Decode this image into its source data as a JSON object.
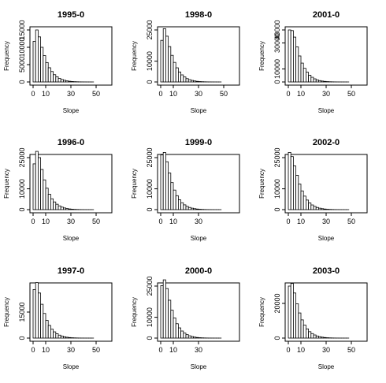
{
  "chart_data": [
    {
      "type": "bar",
      "title": "1995-0",
      "xlabel": "Slope",
      "ylabel": "Frequency",
      "xlim": [
        0,
        60
      ],
      "ylim": [
        0,
        15000
      ],
      "xticks": [
        "0",
        "10",
        "30",
        "50"
      ],
      "yticks": [
        "0",
        "5000",
        "10000",
        "15000"
      ],
      "bin_width": 2,
      "values": [
        11700,
        15000,
        13000,
        10000,
        7600,
        5600,
        4100,
        3000,
        2100,
        1500,
        1000,
        700,
        480,
        300,
        200,
        130,
        80,
        50,
        30,
        18,
        10,
        6,
        4,
        2
      ]
    },
    {
      "type": "bar",
      "title": "1998-0",
      "xlabel": "Slope",
      "ylabel": "Frequency",
      "xlim": [
        0,
        60
      ],
      "ylim": [
        0,
        25000
      ],
      "xticks": [
        "0",
        "10",
        "30",
        "50"
      ],
      "yticks": [
        "0",
        "10000",
        "25000"
      ],
      "bin_width": 2,
      "values": [
        20000,
        25600,
        22000,
        17000,
        12800,
        9400,
        6800,
        4800,
        3400,
        2400,
        1600,
        1100,
        740,
        480,
        300,
        190,
        120,
        70,
        40,
        24,
        14,
        8,
        4,
        2
      ]
    },
    {
      "type": "bar",
      "title": "2001-0",
      "xlabel": "Slope",
      "ylabel": "Frequency",
      "xlim": [
        0,
        60
      ],
      "ylim": [
        0,
        40000
      ],
      "xticks": [
        "0",
        "10",
        "30",
        "50"
      ],
      "yticks": [
        "0",
        "10000",
        "30000",
        "40000"
      ],
      "bin_width": 2,
      "values": [
        40000,
        39500,
        34500,
        27000,
        20000,
        14500,
        10500,
        7500,
        5200,
        3600,
        2400,
        1600,
        1050,
        680,
        430,
        270,
        160,
        95,
        55,
        32,
        18,
        10,
        5,
        3
      ]
    },
    {
      "type": "bar",
      "title": "1996-0",
      "xlabel": "Slope",
      "ylabel": "Frequency",
      "xlim": [
        0,
        60
      ],
      "ylim": [
        0,
        25000
      ],
      "xticks": [
        "0",
        "10",
        "30",
        "50"
      ],
      "yticks": [
        "0",
        "10000",
        "25000"
      ],
      "bin_width": 2,
      "values": [
        22000,
        28200,
        25000,
        19300,
        14300,
        10300,
        7400,
        5200,
        3700,
        2600,
        1800,
        1200,
        800,
        520,
        330,
        210,
        130,
        80,
        45,
        26,
        15,
        8,
        4,
        2
      ]
    },
    {
      "type": "bar",
      "title": "1999-0",
      "xlabel": "Slope",
      "ylabel": "Frequency",
      "xlim": [
        0,
        60
      ],
      "ylim": [
        0,
        25000
      ],
      "xticks": [
        "0",
        "10",
        "30"
      ],
      "yticks": [
        "0",
        "10000",
        "25000"
      ],
      "bin_width": 2,
      "values": [
        26300,
        27500,
        23000,
        17600,
        13000,
        9400,
        6700,
        4700,
        3300,
        2300,
        1550,
        1050,
        700,
        460,
        290,
        180,
        110,
        65,
        38,
        22,
        12,
        7,
        4,
        2
      ]
    },
    {
      "type": "bar",
      "title": "2002-0",
      "xlabel": "Slope",
      "ylabel": "Frequency",
      "xlim": [
        0,
        60
      ],
      "ylim": [
        0,
        25000
      ],
      "xticks": [
        "0",
        "10",
        "30",
        "50"
      ],
      "yticks": [
        "0",
        "10000",
        "25000"
      ],
      "bin_width": 2,
      "values": [
        27500,
        25500,
        21000,
        16500,
        12300,
        9000,
        6500,
        4600,
        3200,
        2250,
        1550,
        1050,
        700,
        460,
        290,
        180,
        110,
        65,
        38,
        22,
        12,
        7,
        4,
        2
      ]
    },
    {
      "type": "bar",
      "title": "1997-0",
      "xlabel": "Slope",
      "ylabel": "Frequency",
      "xlim": [
        0,
        60
      ],
      "ylim": [
        0,
        30000
      ],
      "xticks": [
        "0",
        "10",
        "30",
        "50"
      ],
      "yticks": [
        "0",
        "15000"
      ],
      "bin_width": 2,
      "values": [
        28000,
        32000,
        26000,
        19500,
        14200,
        10200,
        7300,
        5100,
        3600,
        2500,
        1700,
        1150,
        760,
        490,
        310,
        190,
        115,
        68,
        40,
        23,
        13,
        7,
        4,
        2
      ]
    },
    {
      "type": "bar",
      "title": "2000-0",
      "xlabel": "Slope",
      "ylabel": "Frequency",
      "xlim": [
        0,
        60
      ],
      "ylim": [
        0,
        25000
      ],
      "xticks": [
        "0",
        "10",
        "30"
      ],
      "yticks": [
        "0",
        "10000",
        "25000"
      ],
      "bin_width": 2,
      "values": [
        25200,
        28000,
        23800,
        18200,
        13400,
        9700,
        6900,
        4900,
        3400,
        2400,
        1650,
        1100,
        730,
        470,
        300,
        185,
        112,
        66,
        38,
        22,
        12,
        7,
        4,
        2
      ]
    },
    {
      "type": "bar",
      "title": "2003-0",
      "xlabel": "Slope",
      "ylabel": "Frequency",
      "xlim": [
        0,
        60
      ],
      "ylim": [
        0,
        30000
      ],
      "xticks": [
        "0",
        "10",
        "30",
        "50"
      ],
      "yticks": [
        "0",
        "20000"
      ],
      "bin_width": 2,
      "values": [
        30000,
        31500,
        26000,
        19800,
        14500,
        10500,
        7500,
        5300,
        3700,
        2600,
        1800,
        1200,
        800,
        520,
        330,
        200,
        120,
        72,
        42,
        24,
        13,
        7,
        4,
        2
      ]
    }
  ]
}
